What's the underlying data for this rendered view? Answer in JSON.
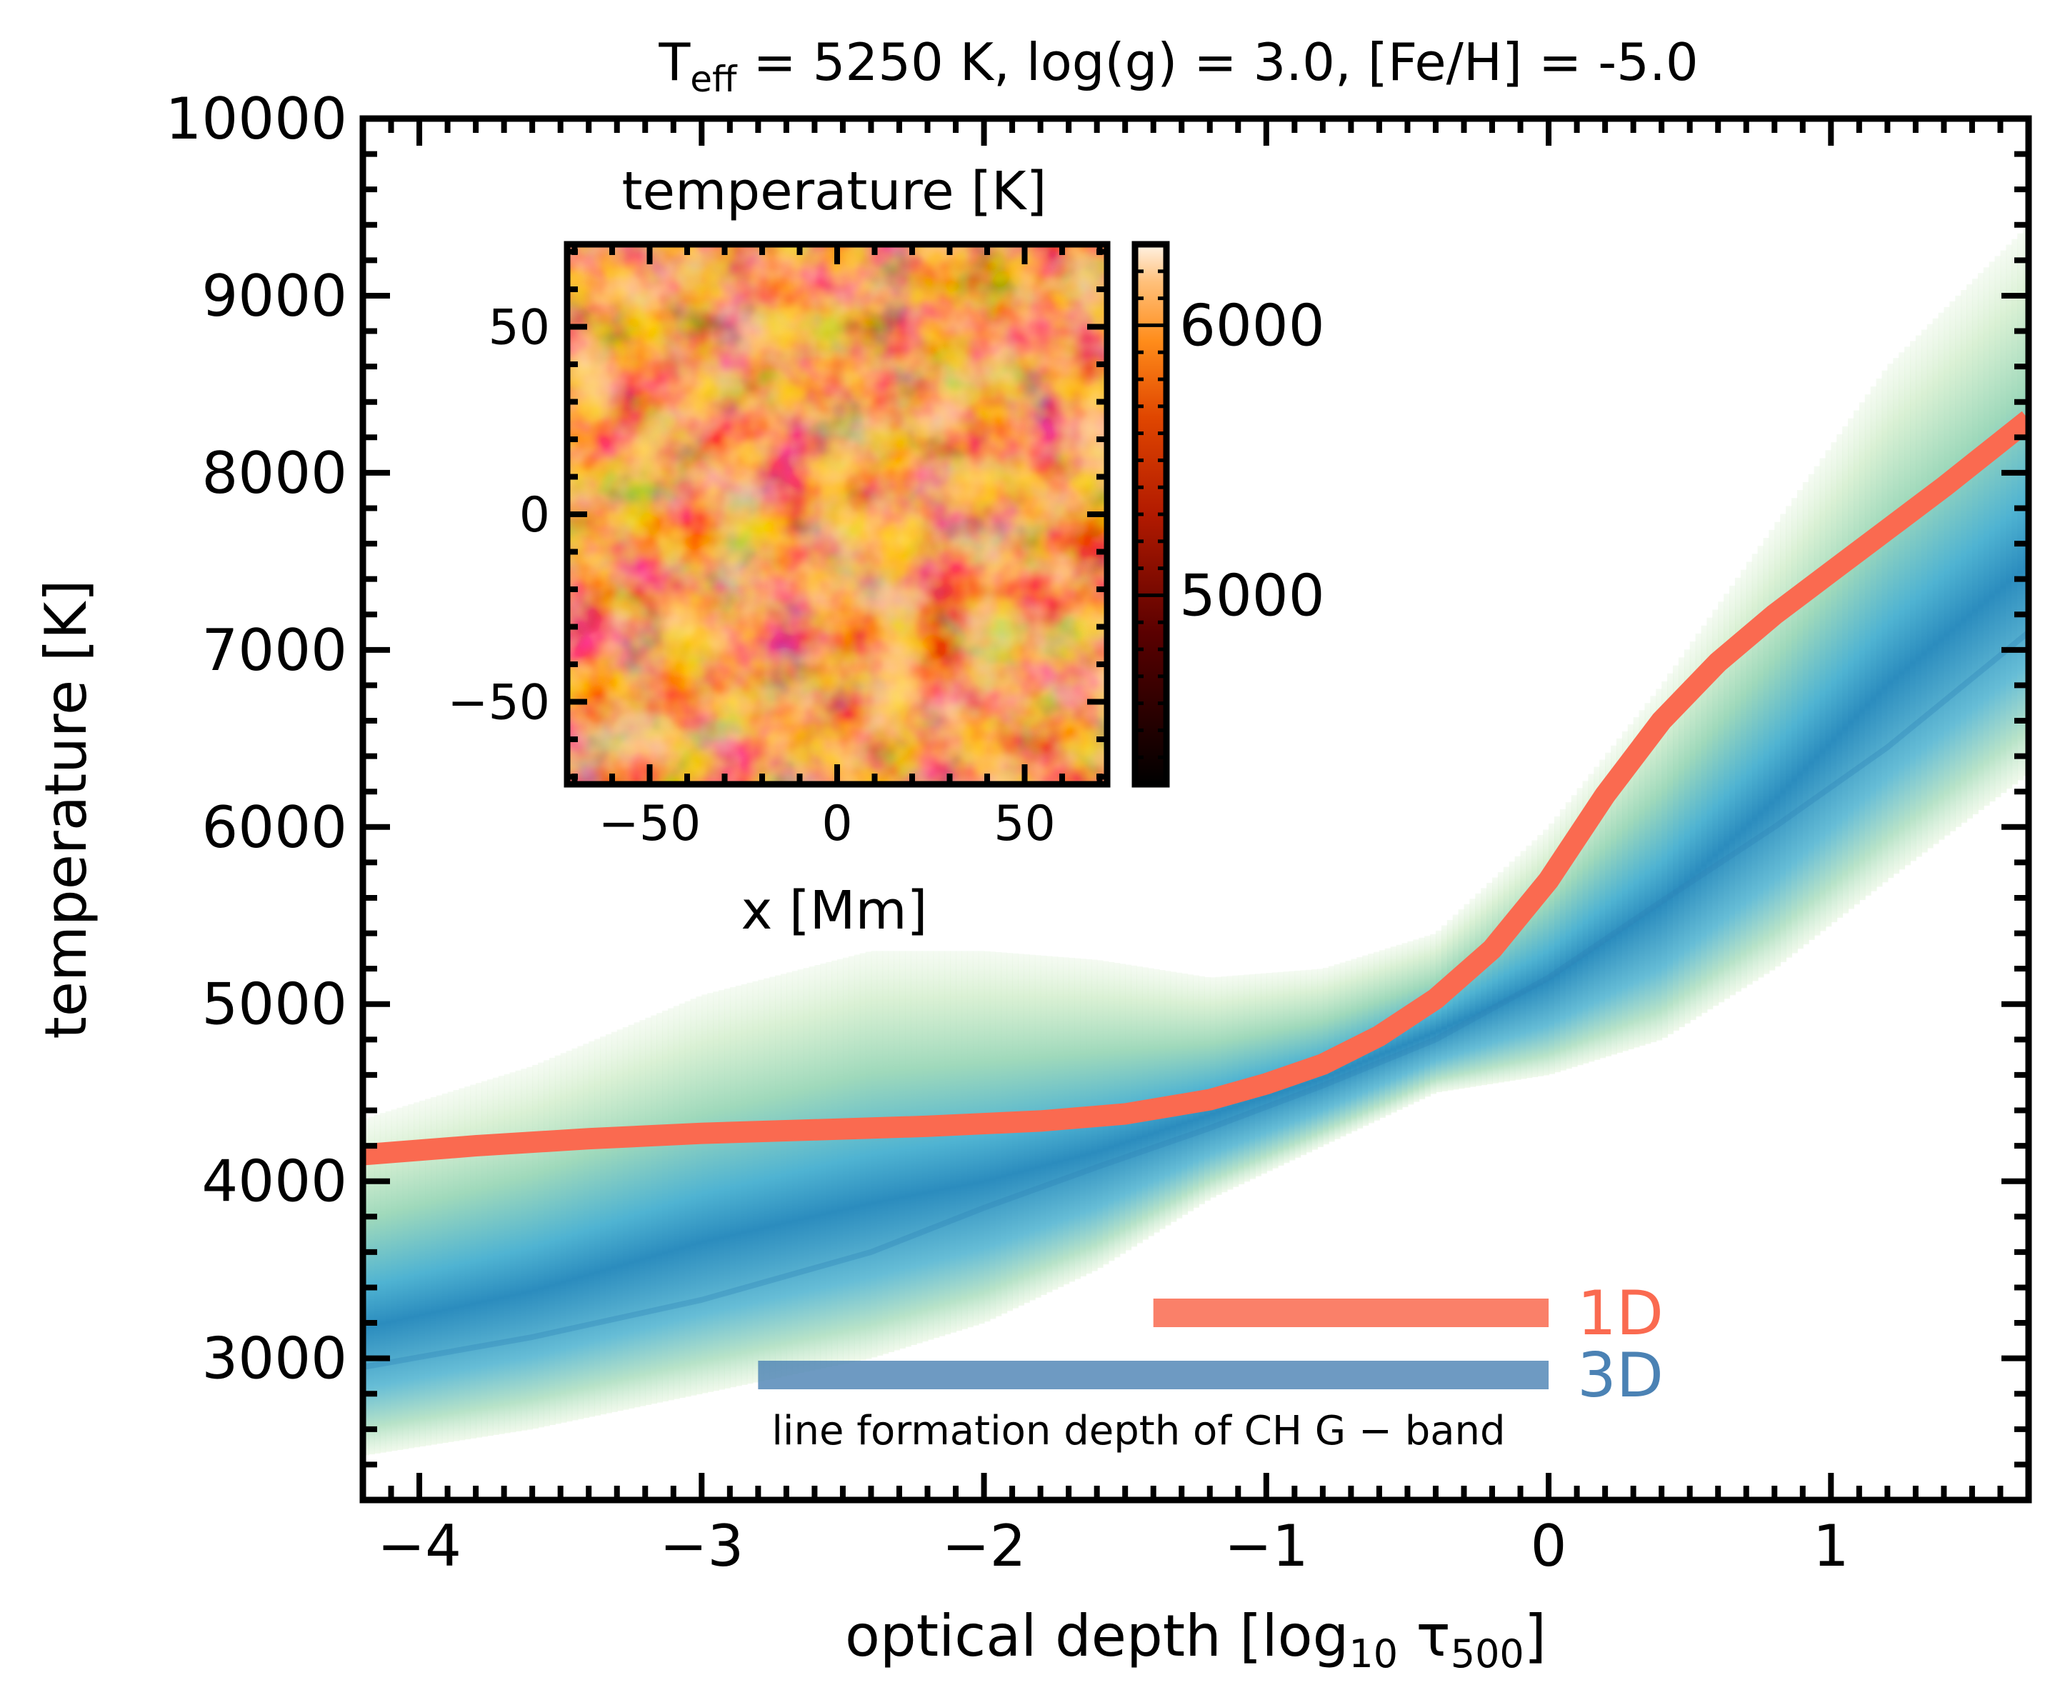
{
  "title": {
    "t_sym": "T",
    "t_sub": "eff",
    "rest": " = 5250 K,  log(g) = 3.0,  [Fe/H] = -5.0"
  },
  "xlabel": {
    "main": "optical depth [log",
    "sub1": "10",
    "tau": " τ",
    "sub2": "500",
    "close": "]"
  },
  "chart_data": [
    {
      "type": "line",
      "xlabel": "optical depth [log10 τ500]",
      "ylabel": "temperature [K]",
      "xlim": [
        -4.2,
        1.7
      ],
      "ylim": [
        2200,
        10000
      ],
      "xticks": [
        -4,
        -3,
        -2,
        -1,
        0,
        1
      ],
      "xtick_labels": [
        "−4",
        "−3",
        "−2",
        "−1",
        "0",
        "1"
      ],
      "yticks": [
        3000,
        4000,
        5000,
        6000,
        7000,
        8000,
        9000,
        10000
      ],
      "ytick_labels": [
        "3000",
        "4000",
        "5000",
        "6000",
        "7000",
        "8000",
        "9000",
        "10000"
      ],
      "grid": false,
      "legend_placement": "lower-right",
      "series": [
        {
          "name": "1D",
          "color": "#fa6a50",
          "x": [
            -4.2,
            -3.8,
            -3.4,
            -3.0,
            -2.6,
            -2.2,
            -1.8,
            -1.5,
            -1.2,
            -1.0,
            -0.8,
            -0.6,
            -0.4,
            -0.2,
            0.0,
            0.2,
            0.4,
            0.6,
            0.8,
            1.0,
            1.2,
            1.4,
            1.7
          ],
          "y": [
            4150,
            4200,
            4240,
            4270,
            4290,
            4310,
            4340,
            4380,
            4460,
            4550,
            4660,
            4820,
            5030,
            5310,
            5700,
            6180,
            6600,
            6930,
            7200,
            7440,
            7680,
            7920,
            8300
          ]
        },
        {
          "name": "3D",
          "color": "#2e84b8",
          "x": [
            -4.2,
            -3.6,
            -3.0,
            -2.4,
            -2.0,
            -1.6,
            -1.2,
            -0.8,
            -0.4,
            0.0,
            0.4,
            0.8,
            1.2,
            1.7
          ],
          "y": [
            2950,
            3120,
            3330,
            3600,
            3850,
            4080,
            4300,
            4540,
            4800,
            5150,
            5580,
            6000,
            6450,
            7100
          ]
        }
      ],
      "distribution_3d": {
        "colormap": "GnBu",
        "x": [
          -4.2,
          -3.6,
          -3.0,
          -2.4,
          -2.0,
          -1.6,
          -1.2,
          -0.8,
          -0.4,
          0.0,
          0.4,
          0.8,
          1.2,
          1.7
        ],
        "t_min": [
          2450,
          2600,
          2800,
          3000,
          3200,
          3500,
          3900,
          4200,
          4500,
          4600,
          4800,
          5200,
          5700,
          6300
        ],
        "t_max": [
          4350,
          4650,
          5050,
          5300,
          5300,
          5250,
          5150,
          5200,
          5400,
          6000,
          6800,
          7700,
          8600,
          9400
        ]
      },
      "line_formation_ranges": [
        {
          "label": "1D",
          "x_start": -1.4,
          "x_end": 0.0,
          "color": "#fa6a50"
        },
        {
          "label": "3D",
          "x_start": -2.8,
          "x_end": 0.0,
          "color": "#4b82b4"
        }
      ],
      "annotation": "line formation depth of CH G − band"
    },
    {
      "type": "heatmap",
      "title": "temperature [K]",
      "xlabel": "x [Mm]",
      "xlim": [
        -72,
        72
      ],
      "ylim": [
        -72,
        72
      ],
      "xticks": [
        -50,
        0,
        50
      ],
      "xtick_labels": [
        "−50",
        "0",
        "50"
      ],
      "yticks": [
        -50,
        0,
        50
      ],
      "ytick_labels": [
        "−50",
        "0",
        "50"
      ],
      "colormap": "gist_heat",
      "colorbar": {
        "range": [
          4300,
          6300
        ],
        "ticks": [
          5000,
          6000
        ],
        "tick_labels": [
          "5000",
          "6000"
        ]
      }
    }
  ]
}
